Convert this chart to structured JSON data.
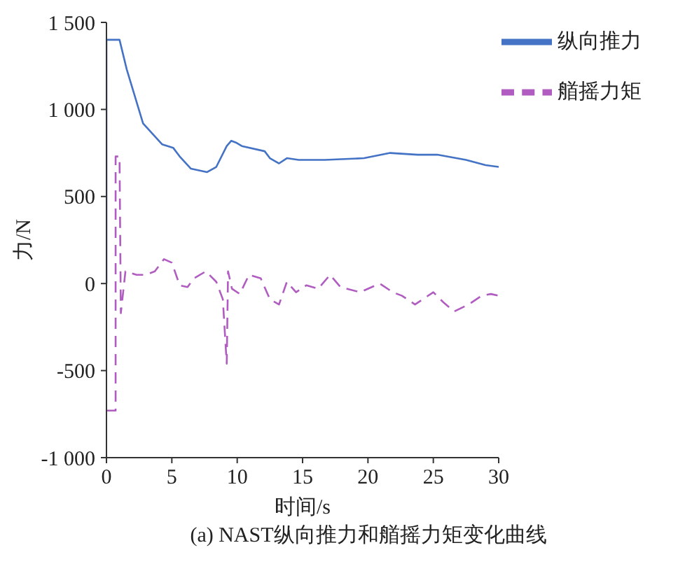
{
  "chart_data": {
    "type": "line",
    "xlabel": "时间/s",
    "ylabel": "力/N",
    "annotations": [
      "(a) NAST纵向推力和艏摇力矩变化曲线"
    ],
    "xlim": [
      0,
      30
    ],
    "xticks": [
      0,
      5,
      10,
      15,
      20,
      25,
      30
    ],
    "ylim": [
      -1000,
      1500
    ],
    "yticks": [
      {
        "value": -1000,
        "label": "-1 000"
      },
      -500,
      0,
      500,
      {
        "value": 1000,
        "label": "1 000"
      },
      {
        "value": 1500,
        "label": "1 500"
      }
    ],
    "grid": false,
    "legend": "top right",
    "marker": "none",
    "series": [
      {
        "name": "纵向推力",
        "color": "#4472c4",
        "line_style": "solid",
        "x": [
          0,
          0,
          1.0,
          1.55,
          2.8,
          4.25,
          5.1,
          5.6,
          6.45,
          7.7,
          8.4,
          9.2,
          9.55,
          9.9,
          10.35,
          12.1,
          12.5,
          13.2,
          13.8,
          14.7,
          16.7,
          19.7,
          21.7,
          23.8,
          25.3,
          27.5,
          29,
          30
        ],
        "values": [
          0,
          1400,
          1400,
          1230,
          920,
          800,
          780,
          730,
          660,
          640,
          670,
          790,
          820,
          810,
          790,
          760,
          720,
          690,
          720,
          710,
          710,
          720,
          750,
          740,
          740,
          710,
          680,
          670
        ]
      },
      {
        "name": "艏摇力矩",
        "color": "#b05cc0",
        "line_style": "dashed",
        "x": [
          0,
          0.7,
          0.7,
          1.0,
          1.1,
          1.45,
          2.3,
          3.0,
          3.7,
          4.4,
          5.0,
          5.6,
          6.2,
          6.7,
          7.6,
          8.4,
          8.9,
          9.2,
          9.3,
          9.6,
          10.2,
          10.9,
          11.8,
          12.5,
          13.2,
          13.8,
          14.5,
          15.3,
          16.2,
          17.1,
          17.9,
          19.4,
          20.9,
          21.9,
          22.6,
          23.6,
          25.0,
          25.8,
          26.6,
          27.7,
          28.7,
          29.4,
          30
        ],
        "values": [
          -730,
          -730,
          730,
          730,
          -170,
          70,
          50,
          50,
          70,
          140,
          120,
          -10,
          -20,
          30,
          70,
          10,
          -90,
          -460,
          70,
          -30,
          -60,
          50,
          30,
          -90,
          -120,
          10,
          -50,
          -10,
          -30,
          50,
          -20,
          -50,
          0,
          -50,
          -70,
          -120,
          -50,
          -110,
          -160,
          -120,
          -70,
          -60,
          -70
        ]
      }
    ]
  }
}
